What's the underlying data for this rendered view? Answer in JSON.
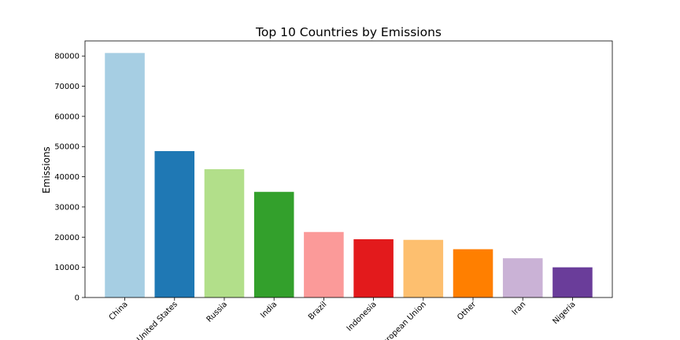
{
  "chart_data": {
    "type": "bar",
    "title": "Top 10 Countries by Emissions",
    "xlabel": "",
    "ylabel": "Emissions",
    "ylim": [
      0,
      85000
    ],
    "yticks": [
      0,
      10000,
      20000,
      30000,
      40000,
      50000,
      60000,
      70000,
      80000
    ],
    "categories": [
      "China",
      "United States",
      "Russia",
      "India",
      "Brazil",
      "Indonesia",
      "European Union",
      "Other",
      "Iran",
      "Nigeria"
    ],
    "values": [
      81000,
      48500,
      42500,
      35000,
      21700,
      19300,
      19100,
      16000,
      13000,
      10000
    ],
    "colors": [
      "#a6cee3",
      "#1f78b4",
      "#b2df8a",
      "#33a02c",
      "#fb9a99",
      "#e31a1c",
      "#fdbf6f",
      "#ff7f00",
      "#cab2d6",
      "#6a3d9a"
    ],
    "grid": false,
    "legend": "none"
  }
}
